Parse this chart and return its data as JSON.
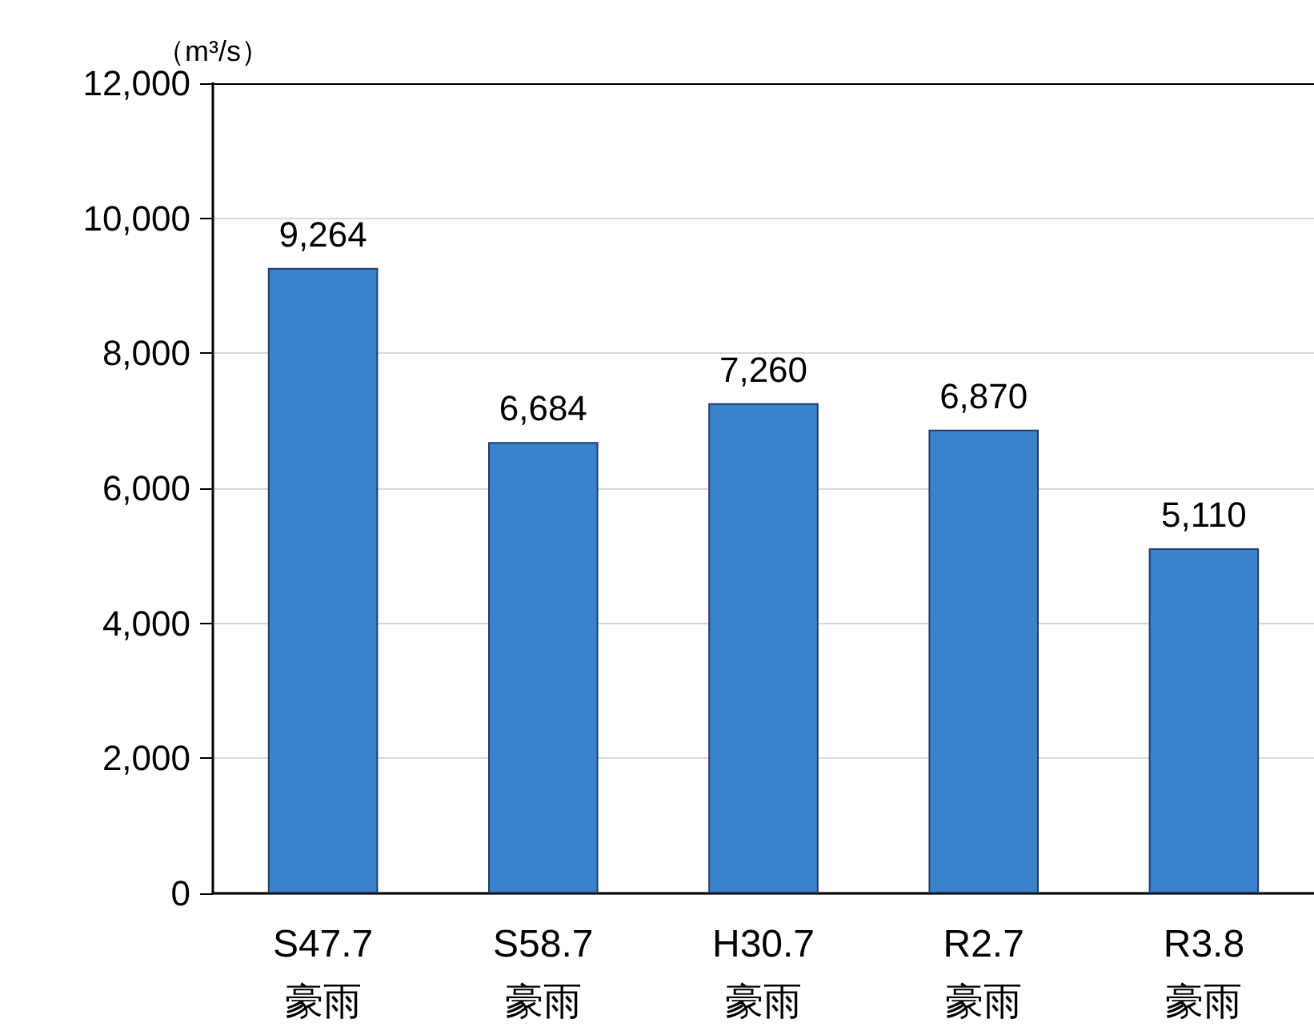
{
  "chart_data": {
    "type": "bar",
    "ylabel": "（m³/s）",
    "categories": [
      "S47.7\n豪雨",
      "S58.7\n豪雨",
      "H30.7\n豪雨",
      "R2.7\n豪雨",
      "R3.8\n豪雨"
    ],
    "values": [
      9264,
      6684,
      7260,
      6870,
      5110
    ],
    "value_labels": [
      "9,264",
      "6,684",
      "7,260",
      "6,870",
      "5,110"
    ],
    "color": "#3a83cc",
    "ylim": [
      0,
      12000
    ],
    "yticks": [
      0,
      {
        "value": 2000,
        "label": "2,000"
      },
      {
        "value": 4000,
        "label": "4,000"
      },
      {
        "value": 6000,
        "label": "6,000"
      },
      {
        "value": 8000,
        "label": "8,000"
      },
      {
        "value": 10000,
        "label": "10,000"
      },
      {
        "value": 12000,
        "label": "12,000"
      }
    ],
    "grid": "y"
  }
}
